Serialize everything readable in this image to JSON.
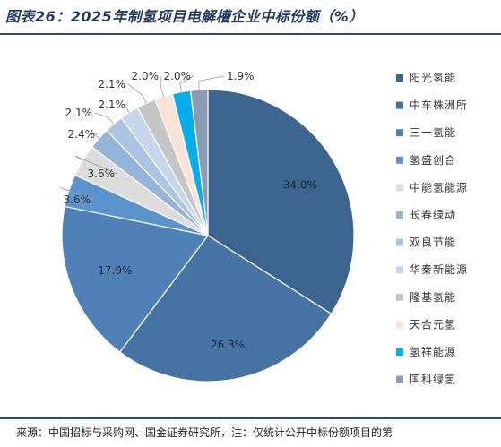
{
  "title": "图表26：2025年制氢项目电解槽企业中标份额（%）",
  "source": "来源：中国招标与采购网、国金证券研究所，注：仅统计公开中标份额项目的第",
  "chart_data": {
    "type": "pie",
    "legend_position": "right",
    "series": [
      {
        "name": "阳光氢能",
        "value": 34.0,
        "label": "34.0%",
        "color": "#3c6590"
      },
      {
        "name": "中车株洲所",
        "value": 26.3,
        "label": "26.3%",
        "color": "#4573a3"
      },
      {
        "name": "三一氢能",
        "value": 17.9,
        "label": "17.9%",
        "color": "#4f81b7"
      },
      {
        "name": "氢盛创合",
        "value": 3.6,
        "label": "3.6%",
        "color": "#5b94cc"
      },
      {
        "name": "中能氢能源",
        "value": 3.6,
        "label": "3.6%",
        "color": "#dcdcdc"
      },
      {
        "name": "长春绿动",
        "value": 2.4,
        "label": "2.4%",
        "color": "#94b4d8"
      },
      {
        "name": "双良节能",
        "value": 2.1,
        "label": "2.1%",
        "color": "#aac4e2"
      },
      {
        "name": "华秦新能源",
        "value": 2.1,
        "label": "2.1%",
        "color": "#c6d7ec"
      },
      {
        "name": "隆基氢能",
        "value": 2.1,
        "label": "2.1%",
        "color": "#c5c5c5"
      },
      {
        "name": "天合元氢",
        "value": 2.0,
        "label": "2.0%",
        "color": "#fae3d6"
      },
      {
        "name": "氢祥能源",
        "value": 2.0,
        "label": "2.0%",
        "color": "#05aeea"
      },
      {
        "name": "国科绿氢",
        "value": 1.9,
        "label": "1.9%",
        "color": "#8a9bb4"
      }
    ]
  }
}
